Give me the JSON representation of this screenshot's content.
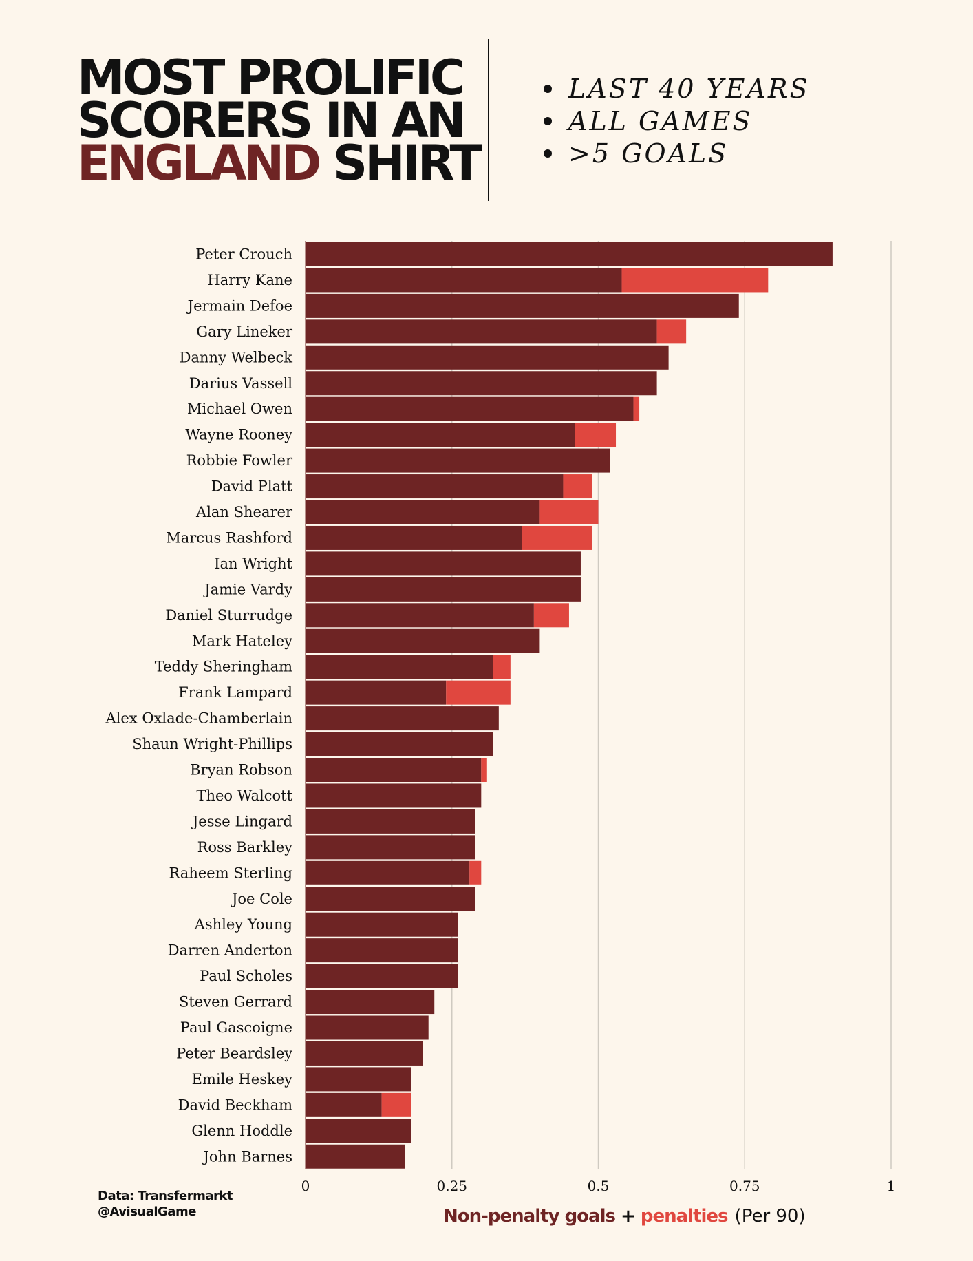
{
  "title": {
    "line1": "MOST PROLIFIC",
    "line2": "SCORERS IN AN",
    "line3_accent": "ENGLAND",
    "line3_rest": " SHIRT"
  },
  "criteria": [
    "LAST 40 YEARS",
    "ALL GAMES",
    ">5 GOALS"
  ],
  "credits": {
    "source": "Data: Transfermarkt",
    "handle": "@AvisualGame"
  },
  "xaxis_title": {
    "part1": "Non-penalty goals",
    "plus": " + ",
    "part2": "penalties",
    "unit": "(Per 90)"
  },
  "colors": {
    "non_penalty": "#6e2424",
    "penalties": "#e0473f",
    "background": "#fdf6ec",
    "grid": "#cfcac1"
  },
  "chart_data": {
    "type": "bar",
    "orientation": "horizontal",
    "stacked": true,
    "xlim": [
      0,
      1
    ],
    "xticks": [
      "0",
      "0.25",
      "0.5",
      "0.75",
      "1"
    ],
    "grid": true,
    "categories": [
      "Peter Crouch",
      "Harry Kane",
      "Jermain Defoe",
      "Gary Lineker",
      "Danny Welbeck",
      "Darius Vassell",
      "Michael Owen",
      "Wayne Rooney",
      "Robbie Fowler",
      "David Platt",
      "Alan Shearer",
      "Marcus Rashford",
      "Ian Wright",
      "Jamie Vardy",
      "Daniel Sturrudge",
      "Mark Hateley",
      "Teddy Sheringham",
      "Frank Lampard",
      "Alex Oxlade-Chamberlain",
      "Shaun Wright-Phillips",
      "Bryan Robson",
      "Theo Walcott",
      "Jesse Lingard",
      "Ross Barkley",
      "Raheem Sterling",
      "Joe Cole",
      "Ashley Young",
      "Darren Anderton",
      "Paul Scholes",
      "Steven Gerrard",
      "Paul Gascoigne",
      "Peter Beardsley",
      "Emile Heskey",
      "David Beckham",
      "Glenn Hoddle",
      "John Barnes"
    ],
    "series": [
      {
        "key": "non_penalty",
        "values": [
          0.9,
          0.54,
          0.74,
          0.6,
          0.62,
          0.6,
          0.56,
          0.46,
          0.52,
          0.44,
          0.4,
          0.37,
          0.47,
          0.47,
          0.39,
          0.4,
          0.32,
          0.24,
          0.33,
          0.32,
          0.3,
          0.3,
          0.29,
          0.29,
          0.28,
          0.29,
          0.26,
          0.26,
          0.26,
          0.22,
          0.21,
          0.2,
          0.18,
          0.13,
          0.18,
          0.17
        ]
      },
      {
        "key": "penalties",
        "values": [
          0,
          0.25,
          0,
          0.05,
          0,
          0,
          0.01,
          0.07,
          0,
          0.05,
          0.1,
          0.12,
          0,
          0,
          0.06,
          0,
          0.03,
          0.11,
          0,
          0,
          0.01,
          0,
          0,
          0,
          0.02,
          0,
          0,
          0,
          0,
          0,
          0,
          0,
          0,
          0.05,
          0,
          0
        ]
      }
    ]
  }
}
